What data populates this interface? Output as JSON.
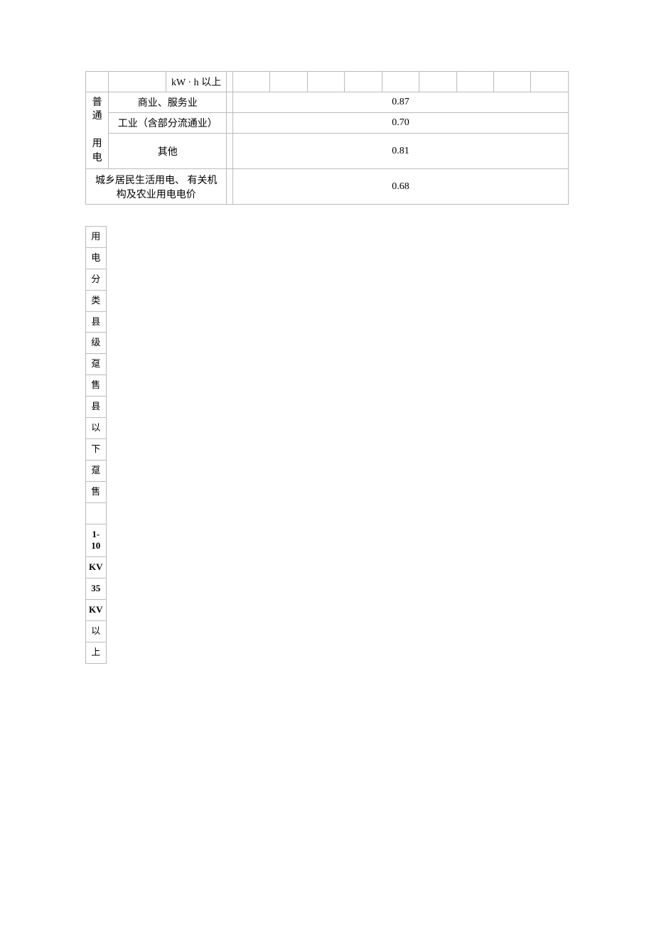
{
  "table1": {
    "header_fragment": "kW · h 以上",
    "category_vertical": "普通用电",
    "rows": [
      {
        "label": "商业、服务业",
        "price": "0.87"
      },
      {
        "label": "工业（含部分流通业）",
        "price": "0.70"
      },
      {
        "label": "其他",
        "price": "0.81"
      }
    ],
    "bottom_label": "城乡居民生活用电、 有关机构及农业用电电价",
    "bottom_price": "0.68"
  },
  "table2": {
    "cells": [
      {
        "text": "用",
        "bold": false
      },
      {
        "text": "电",
        "bold": false
      },
      {
        "text": "分",
        "bold": false
      },
      {
        "text": "类",
        "bold": false
      },
      {
        "text": "县",
        "bold": false
      },
      {
        "text": "级",
        "bold": false
      },
      {
        "text": "趸",
        "bold": false
      },
      {
        "text": "售",
        "bold": false
      },
      {
        "text": "县",
        "bold": false
      },
      {
        "text": "以",
        "bold": false
      },
      {
        "text": "下",
        "bold": false
      },
      {
        "text": "趸",
        "bold": false
      },
      {
        "text": "售",
        "bold": false
      },
      {
        "text": "",
        "bold": false,
        "empty": true
      },
      {
        "text": "1-10",
        "bold": true
      },
      {
        "text": "KV",
        "bold": true
      },
      {
        "text": "35",
        "bold": true
      },
      {
        "text": "KV",
        "bold": true
      },
      {
        "text": "以",
        "bold": false
      },
      {
        "text": "上",
        "bold": false
      }
    ]
  },
  "colors": {
    "border": "#bbbbbb",
    "text": "#000000",
    "background": "#ffffff"
  }
}
